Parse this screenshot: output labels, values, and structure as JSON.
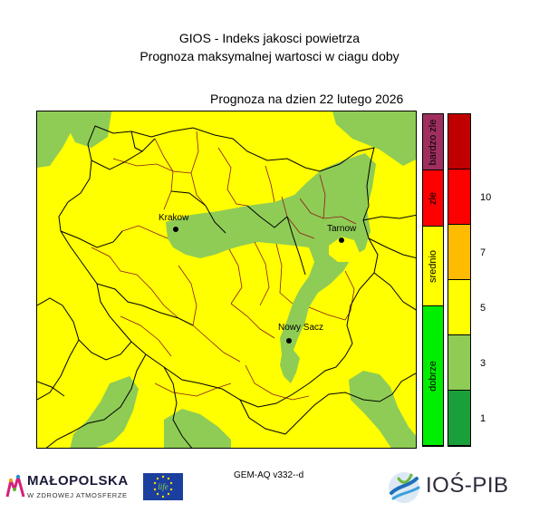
{
  "header": {
    "title_line1": "GIOS - Indeks jakosci powietrza",
    "title_line2": "Prognoza maksymalnej wartosci w ciagu doby",
    "forecast_date": "Prognoza na dzien  22 lutego 2026"
  },
  "map": {
    "base_color": "#ffff00",
    "cities": [
      {
        "name": "Krakow"
      },
      {
        "name": "Tarnow"
      },
      {
        "name": "Nowy Sacz"
      }
    ]
  },
  "legend": {
    "categories": [
      {
        "label": "dobrze",
        "color": "#00ee00"
      },
      {
        "label": "srednio",
        "color": "#ffff00"
      },
      {
        "label": "zle",
        "color": "#ff0000"
      },
      {
        "label": "bardzo zle",
        "color": "#9f2f5f"
      }
    ],
    "index_scale": [
      {
        "from": 0,
        "to": 1,
        "color": "#1aa03a"
      },
      {
        "from": 1,
        "to": 3,
        "color": "#8fcc55"
      },
      {
        "from": 3,
        "to": 5,
        "color": "#ffff00"
      },
      {
        "from": 5,
        "to": 7,
        "color": "#ffbb00"
      },
      {
        "from": 7,
        "to": 10,
        "color": "#ff0000"
      },
      {
        "from": 10,
        "to": 12,
        "color": "#c00000"
      }
    ],
    "tick_labels": [
      "1",
      "3",
      "5",
      "7",
      "10"
    ]
  },
  "footer": {
    "model_label": "GEM-AQ v332--d",
    "logo_left_word": "MAŁOPOLSKA",
    "logo_left_tagline": "W ZDROWEJ ATMOSFERZE",
    "eu_logo_text": "life",
    "logo_right_word": "IOŚ-PIB"
  }
}
